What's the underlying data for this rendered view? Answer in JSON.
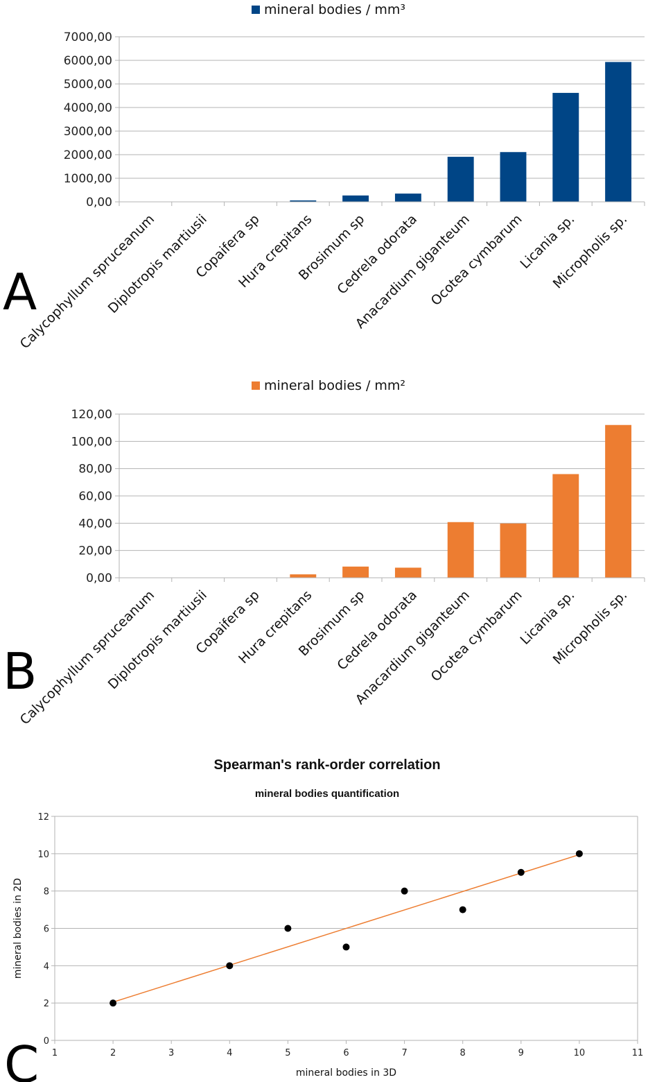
{
  "panels": [
    "A",
    "B",
    "C"
  ],
  "chart_data": [
    {
      "type": "bar",
      "panel": "A",
      "categories": [
        "Calycophyllum spruceanum",
        "Diplotropis martiusii",
        "Copaifera sp",
        "Hura crepitans",
        "Brosimum sp",
        "Cedrela odorata",
        "Anacardium giganteum",
        "Ocotea cymbarum",
        "Licania sp.",
        "Micropholis sp."
      ],
      "series": [
        {
          "name": "mineral bodies / mm³",
          "color": "#004586",
          "values": [
            0,
            0,
            0,
            60,
            270,
            350,
            1910,
            2110,
            4620,
            5930
          ]
        }
      ],
      "yticks": [
        "0,00",
        "1000,00",
        "2000,00",
        "3000,00",
        "4000,00",
        "5000,00",
        "6000,00",
        "7000,00"
      ],
      "ylim": [
        0,
        7000
      ],
      "grid": true,
      "legend": "top-center"
    },
    {
      "type": "bar",
      "panel": "B",
      "categories": [
        "Calycophyllum spruceanum",
        "Diplotropis martiusii",
        "Copaifera sp",
        "Hura crepitans",
        "Brosimum sp",
        "Cedrela odorata",
        "Anacardium giganteum",
        "Ocotea cymbarum",
        "Licania sp.",
        "Micropholis sp."
      ],
      "series": [
        {
          "name": "mineral bodies / mm²",
          "color": "#ed7d31",
          "values": [
            0,
            0,
            0,
            2.5,
            8.2,
            7.4,
            40.8,
            39.8,
            76,
            112
          ]
        }
      ],
      "yticks": [
        "0,00",
        "20,00",
        "40,00",
        "60,00",
        "80,00",
        "100,00",
        "120,00"
      ],
      "ylim": [
        0,
        120
      ],
      "grid": true,
      "legend": "top-center"
    },
    {
      "type": "scatter",
      "panel": "C",
      "title": "Spearman's rank-order correlation",
      "subtitle": "mineral bodies quantification",
      "xlabel": "mineral bodies in 3D",
      "ylabel": "mineral bodies in 2D",
      "xlim": [
        1,
        11
      ],
      "ylim": [
        0,
        12
      ],
      "xticks": [
        "1",
        "2",
        "3",
        "4",
        "5",
        "6",
        "7",
        "8",
        "9",
        "10",
        "11"
      ],
      "yticks": [
        "0",
        "2",
        "4",
        "6",
        "8",
        "10",
        "12"
      ],
      "points": [
        [
          2,
          2
        ],
        [
          4,
          4
        ],
        [
          5,
          6
        ],
        [
          6,
          5
        ],
        [
          7,
          8
        ],
        [
          8,
          7
        ],
        [
          9,
          9
        ],
        [
          10,
          10
        ]
      ],
      "trendline": {
        "x": [
          2,
          10
        ],
        "y": [
          2.05,
          9.95
        ],
        "color": "#ed7d31"
      },
      "point_color": "#000000",
      "grid": true
    }
  ]
}
